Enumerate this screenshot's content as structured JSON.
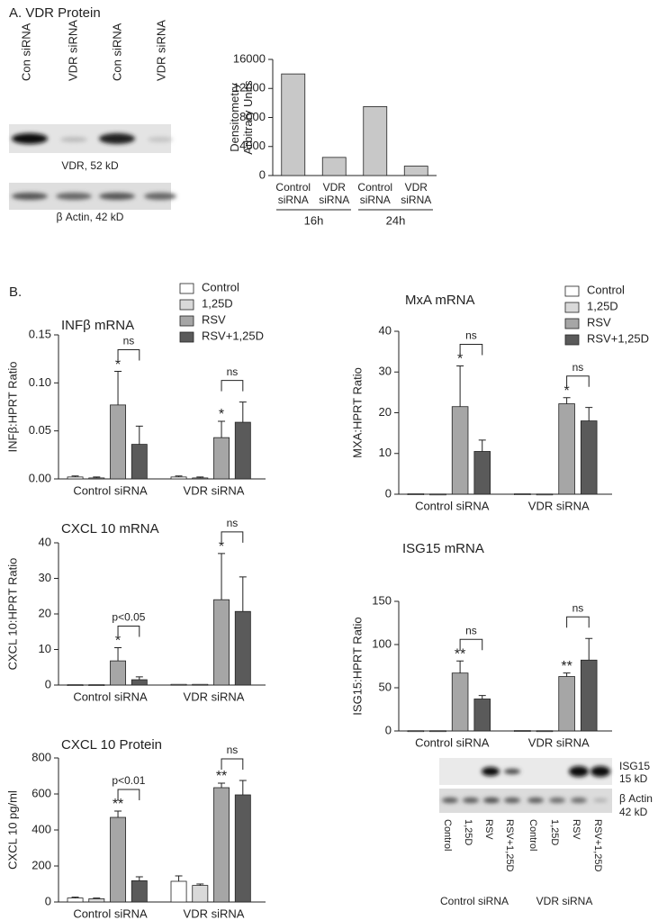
{
  "panels": {
    "a": "A. VDR Protein",
    "b": "B."
  },
  "blot_a": {
    "lanes": [
      "Con siRNA",
      "VDR siRNA",
      "Con siRNA",
      "VDR siRNA"
    ],
    "bands": [
      "VDR, 52 kD",
      "β Actin, 42 kD"
    ]
  },
  "blot_b": {
    "lanes": [
      "Control",
      "1,25D",
      "RSV",
      "RSV+1,25D",
      "Control",
      "1,25D",
      "RSV",
      "RSV+1,25D"
    ],
    "bands": [
      [
        "ISG15",
        "15 kD"
      ],
      [
        "β Actin",
        "42 kD"
      ]
    ],
    "groups": [
      "Control siRNA",
      "VDR siRNA"
    ]
  },
  "chart_data": [
    {
      "type": "bar",
      "ylabel": "Densitometry Arbitrary Units",
      "categories": [
        "Control siRNA",
        "VDR siRNA",
        "Control siRNA",
        "VDR siRNA"
      ],
      "group_labels": [
        "16h",
        "24h"
      ],
      "values": [
        14000,
        2500,
        9500,
        1300
      ],
      "color": "#c8c8c8",
      "ylim": [
        0,
        16000
      ],
      "yticks": [
        0,
        4000,
        8000,
        12000,
        16000
      ]
    },
    {
      "type": "grouped_bar",
      "title": "INFβ mRNA",
      "ylabel": "INFβ:HPRT Ratio",
      "legend": true,
      "categories": [
        "Control siRNA",
        "VDR siRNA"
      ],
      "series": [
        {
          "name": "Control",
          "color": "#ffffff",
          "values": [
            0.002,
            0.002
          ],
          "errors": [
            0.001,
            0.001
          ]
        },
        {
          "name": "1,25D",
          "color": "#d9d9d9",
          "values": [
            0.001,
            0.001
          ],
          "errors": [
            0.001,
            0.001
          ]
        },
        {
          "name": "RSV",
          "color": "#a6a6a6",
          "values": [
            0.077,
            0.043
          ],
          "errors": [
            0.035,
            0.017
          ],
          "stars": [
            "*",
            "*"
          ]
        },
        {
          "name": "RSV+1,25D",
          "color": "#5a5a5a",
          "values": [
            0.036,
            0.059
          ],
          "errors": [
            0.019,
            0.021
          ]
        }
      ],
      "brackets": [
        "ns",
        "ns"
      ],
      "ylim": [
        0,
        0.15
      ],
      "yticks": [
        {
          "value": 0,
          "label": "0.00"
        },
        {
          "value": 0.05,
          "label": "0.05"
        },
        {
          "value": 0.1,
          "label": "0.10"
        },
        {
          "value": 0.15,
          "label": "0.15"
        }
      ]
    },
    {
      "type": "grouped_bar",
      "title": "CXCL 10 mRNA",
      "ylabel": "CXCL 10:HPRT Ratio",
      "categories": [
        "Control siRNA",
        "VDR siRNA"
      ],
      "series": [
        {
          "name": "Control",
          "color": "#ffffff",
          "values": [
            0.1,
            0.2
          ],
          "errors": [
            0,
            0
          ]
        },
        {
          "name": "1,25D",
          "color": "#d9d9d9",
          "values": [
            0.1,
            0.2
          ],
          "errors": [
            0,
            0
          ]
        },
        {
          "name": "RSV",
          "color": "#a6a6a6",
          "values": [
            6.8,
            24
          ],
          "errors": [
            3.7,
            13
          ],
          "stars": [
            "*",
            "*"
          ]
        },
        {
          "name": "RSV+1,25D",
          "color": "#5a5a5a",
          "values": [
            1.5,
            20.7
          ],
          "errors": [
            0.8,
            9.7
          ]
        }
      ],
      "brackets": [
        "p<0.05",
        "ns"
      ],
      "ylim": [
        0,
        40
      ],
      "yticks": [
        0,
        10,
        20,
        30,
        40
      ]
    },
    {
      "type": "grouped_bar",
      "title": "CXCL 10 Protein",
      "ylabel": "CXCL 10 pg/ml",
      "categories": [
        "Control siRNA",
        "VDR siRNA"
      ],
      "series": [
        {
          "name": "Control",
          "color": "#ffffff",
          "values": [
            22,
            115
          ],
          "errors": [
            5,
            30
          ]
        },
        {
          "name": "1,25D",
          "color": "#d9d9d9",
          "values": [
            18,
            92
          ],
          "errors": [
            4,
            8
          ]
        },
        {
          "name": "RSV",
          "color": "#a6a6a6",
          "values": [
            470,
            635
          ],
          "errors": [
            35,
            25
          ],
          "stars": [
            "**",
            "**"
          ]
        },
        {
          "name": "RSV+1,25D",
          "color": "#5a5a5a",
          "values": [
            118,
            595
          ],
          "errors": [
            22,
            80
          ]
        }
      ],
      "brackets": [
        "p<0.01",
        "ns"
      ],
      "ylim": [
        0,
        800
      ],
      "yticks": [
        0,
        200,
        400,
        600,
        800
      ]
    },
    {
      "type": "grouped_bar",
      "title": "MxA mRNA",
      "ylabel": "MXA:HPRT Ratio",
      "legend": true,
      "categories": [
        "Control siRNA",
        "VDR siRNA"
      ],
      "series": [
        {
          "name": "Control",
          "color": "#ffffff",
          "values": [
            0.1,
            0.1
          ],
          "errors": [
            0,
            0
          ]
        },
        {
          "name": "1,25D",
          "color": "#d9d9d9",
          "values": [
            0.05,
            0.05
          ],
          "errors": [
            0,
            0
          ]
        },
        {
          "name": "RSV",
          "color": "#a6a6a6",
          "values": [
            21.5,
            22.2
          ],
          "errors": [
            10,
            1.5
          ],
          "stars": [
            "*",
            "*"
          ]
        },
        {
          "name": "RSV+1,25D",
          "color": "#5a5a5a",
          "values": [
            10.5,
            18
          ],
          "errors": [
            2.8,
            3.3
          ]
        }
      ],
      "brackets": [
        "ns",
        "ns"
      ],
      "ylim": [
        0,
        40
      ],
      "yticks": [
        0,
        10,
        20,
        30,
        40
      ]
    },
    {
      "type": "grouped_bar",
      "title": "ISG15 mRNA",
      "ylabel": "ISG15:HPRT Ratio",
      "categories": [
        "Control siRNA",
        "VDR siRNA"
      ],
      "series": [
        {
          "name": "Control",
          "color": "#ffffff",
          "values": [
            0.3,
            0.5
          ],
          "errors": [
            0,
            0
          ]
        },
        {
          "name": "1,25D",
          "color": "#d9d9d9",
          "values": [
            0.3,
            0.3
          ],
          "errors": [
            0,
            0
          ]
        },
        {
          "name": "RSV",
          "color": "#a6a6a6",
          "values": [
            67,
            63
          ],
          "errors": [
            14,
            4
          ],
          "stars": [
            "**",
            "**"
          ]
        },
        {
          "name": "RSV+1,25D",
          "color": "#5a5a5a",
          "values": [
            37,
            82
          ],
          "errors": [
            4,
            25
          ]
        }
      ],
      "brackets": [
        "ns",
        "ns"
      ],
      "ylim": [
        0,
        150
      ],
      "yticks": [
        0,
        50,
        100,
        150
      ]
    }
  ]
}
